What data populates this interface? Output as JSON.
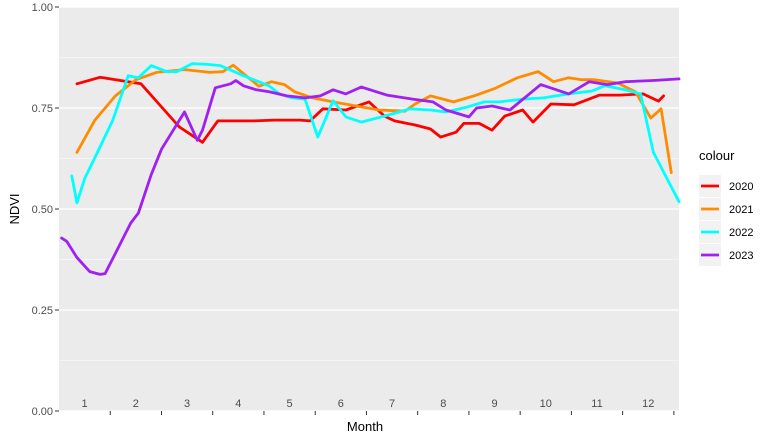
{
  "chart_data": {
    "type": "line",
    "title": "",
    "xlabel": "Month",
    "ylabel": "NDVI",
    "x_tick_labels": [
      "1",
      "2",
      "3",
      "4",
      "5",
      "6",
      "7",
      "8",
      "9",
      "10",
      "11",
      "12"
    ],
    "y_tick_labels": [
      "0.00",
      "0.25",
      "0.50",
      "0.75",
      "1.00"
    ],
    "y_ticks": [
      0,
      0.25,
      0.5,
      0.75,
      1.0
    ],
    "xlim": [
      0.5,
      12.6
    ],
    "ylim": [
      0,
      1
    ],
    "grid": true,
    "legend": {
      "title": "colour",
      "placement": "right"
    },
    "series": [
      {
        "name": "2020",
        "color": "#ff0000",
        "x": [
          0.85,
          1.3,
          1.7,
          2.1,
          2.45,
          2.85,
          3.3,
          3.6,
          3.85,
          4.3,
          4.7,
          5.2,
          5.4,
          5.65,
          6.1,
          6.55,
          6.85,
          7.05,
          7.45,
          7.75,
          7.95,
          8.25,
          8.4,
          8.7,
          8.95,
          9.2,
          9.55,
          9.75,
          10.1,
          10.55,
          11.05,
          11.45,
          11.9,
          12.2,
          12.3
        ],
        "y": [
          0.81,
          0.826,
          0.818,
          0.81,
          0.76,
          0.703,
          0.665,
          0.718,
          0.718,
          0.718,
          0.72,
          0.72,
          0.718,
          0.748,
          0.745,
          0.765,
          0.73,
          0.718,
          0.708,
          0.698,
          0.678,
          0.69,
          0.712,
          0.712,
          0.695,
          0.73,
          0.745,
          0.715,
          0.76,
          0.758,
          0.782,
          0.782,
          0.785,
          0.767,
          0.78
        ]
      },
      {
        "name": "2021",
        "color": "#ff8c00",
        "x": [
          0.85,
          1.2,
          1.6,
          2.0,
          2.4,
          2.95,
          3.45,
          3.7,
          3.9,
          4.4,
          4.65,
          4.9,
          5.1,
          5.45,
          5.85,
          6.3,
          6.75,
          7.25,
          7.45,
          7.75,
          8.2,
          8.6,
          9.0,
          9.45,
          9.85,
          10.15,
          10.45,
          10.7,
          10.95,
          11.4,
          11.75,
          12.05,
          12.25,
          12.45
        ],
        "y": [
          0.64,
          0.72,
          0.78,
          0.82,
          0.838,
          0.845,
          0.838,
          0.84,
          0.856,
          0.804,
          0.815,
          0.808,
          0.79,
          0.775,
          0.765,
          0.755,
          0.745,
          0.742,
          0.76,
          0.78,
          0.765,
          0.78,
          0.798,
          0.825,
          0.84,
          0.815,
          0.825,
          0.82,
          0.82,
          0.812,
          0.79,
          0.725,
          0.748,
          0.59
        ]
      },
      {
        "name": "2022",
        "color": "#00ffff",
        "x": [
          0.75,
          0.85,
          1.0,
          1.25,
          1.55,
          1.85,
          2.05,
          2.3,
          2.6,
          2.8,
          3.1,
          3.4,
          3.65,
          4.1,
          4.6,
          4.8,
          5.05,
          5.3,
          5.55,
          5.85,
          6.1,
          6.4,
          6.85,
          7.35,
          7.75,
          8.05,
          8.45,
          8.8,
          9.1,
          9.55,
          9.95,
          10.45,
          10.9,
          11.15,
          11.55,
          11.85,
          12.1,
          12.6
        ],
        "y": [
          0.582,
          0.515,
          0.575,
          0.64,
          0.72,
          0.83,
          0.825,
          0.855,
          0.84,
          0.84,
          0.86,
          0.858,
          0.855,
          0.83,
          0.805,
          0.785,
          0.775,
          0.772,
          0.678,
          0.768,
          0.728,
          0.715,
          0.73,
          0.748,
          0.745,
          0.74,
          0.752,
          0.765,
          0.765,
          0.772,
          0.775,
          0.785,
          0.792,
          0.805,
          0.795,
          0.785,
          0.64,
          0.518
        ]
      },
      {
        "name": "2023",
        "color": "#a020f0",
        "x": [
          0.55,
          0.65,
          0.85,
          1.1,
          1.3,
          1.4,
          1.6,
          1.9,
          2.05,
          2.3,
          2.5,
          2.95,
          3.2,
          3.3,
          3.55,
          3.85,
          3.95,
          4.1,
          4.35,
          4.6,
          4.95,
          5.3,
          5.6,
          5.85,
          6.1,
          6.4,
          6.9,
          7.4,
          7.8,
          8.05,
          8.5,
          8.65,
          8.95,
          9.3,
          9.9,
          10.45,
          10.85,
          11.2,
          11.55,
          12.1,
          12.6
        ],
        "y": [
          0.428,
          0.42,
          0.38,
          0.345,
          0.338,
          0.34,
          0.39,
          0.465,
          0.49,
          0.585,
          0.648,
          0.74,
          0.67,
          0.695,
          0.8,
          0.81,
          0.818,
          0.805,
          0.795,
          0.79,
          0.78,
          0.775,
          0.78,
          0.795,
          0.785,
          0.802,
          0.782,
          0.772,
          0.765,
          0.745,
          0.728,
          0.75,
          0.755,
          0.745,
          0.808,
          0.785,
          0.815,
          0.808,
          0.815,
          0.818,
          0.822
        ]
      }
    ]
  }
}
